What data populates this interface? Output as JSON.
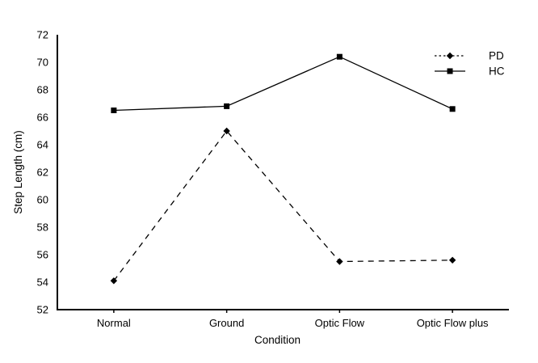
{
  "chart_data": {
    "type": "line",
    "title": "",
    "xlabel": "Condition",
    "ylabel": "Step Length (cm)",
    "categories": [
      "Normal",
      "Ground",
      "Optic Flow",
      "Optic Flow plus"
    ],
    "series": [
      {
        "name": "PD",
        "values": [
          54.1,
          65.0,
          55.5,
          55.6
        ],
        "line_style": "dashed",
        "marker": "diamond",
        "color": "#000000"
      },
      {
        "name": "HC",
        "values": [
          66.5,
          66.8,
          70.4,
          66.6
        ],
        "line_style": "solid",
        "marker": "square",
        "color": "#000000"
      }
    ],
    "ylim": [
      52,
      72
    ],
    "ytick_step": 2,
    "ytick_labels": [
      "52",
      "54",
      "56",
      "58",
      "60",
      "62",
      "64",
      "66",
      "68",
      "70",
      "72"
    ],
    "grid": false,
    "legend_position": "top-right",
    "legend_entries": [
      "PD",
      "HC"
    ],
    "colors": {
      "axis": "#000000",
      "text": "#000000",
      "background": "#ffffff"
    }
  }
}
